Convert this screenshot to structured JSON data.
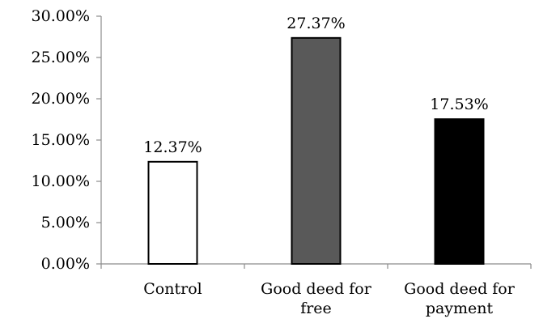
{
  "chart_data": {
    "type": "bar",
    "categories": [
      [
        "Control"
      ],
      [
        "Good deed for",
        "free"
      ],
      [
        "Good deed for",
        "payment"
      ]
    ],
    "values": [
      12.37,
      27.37,
      17.53
    ],
    "data_labels": [
      "12.37%",
      "27.37%",
      "17.53%"
    ],
    "bar_colors": [
      "#ffffff",
      "#595959",
      "#000000"
    ],
    "ylim": [
      0,
      30
    ],
    "yticks": [
      0,
      5,
      10,
      15,
      20,
      25,
      30
    ],
    "ytick_labels": [
      "0.00%",
      "5.00%",
      "10.00%",
      "15.00%",
      "20.00%",
      "25.00%",
      "30.00%"
    ],
    "grid": false,
    "legend": "none",
    "title": "",
    "xlabel": "",
    "ylabel": ""
  }
}
